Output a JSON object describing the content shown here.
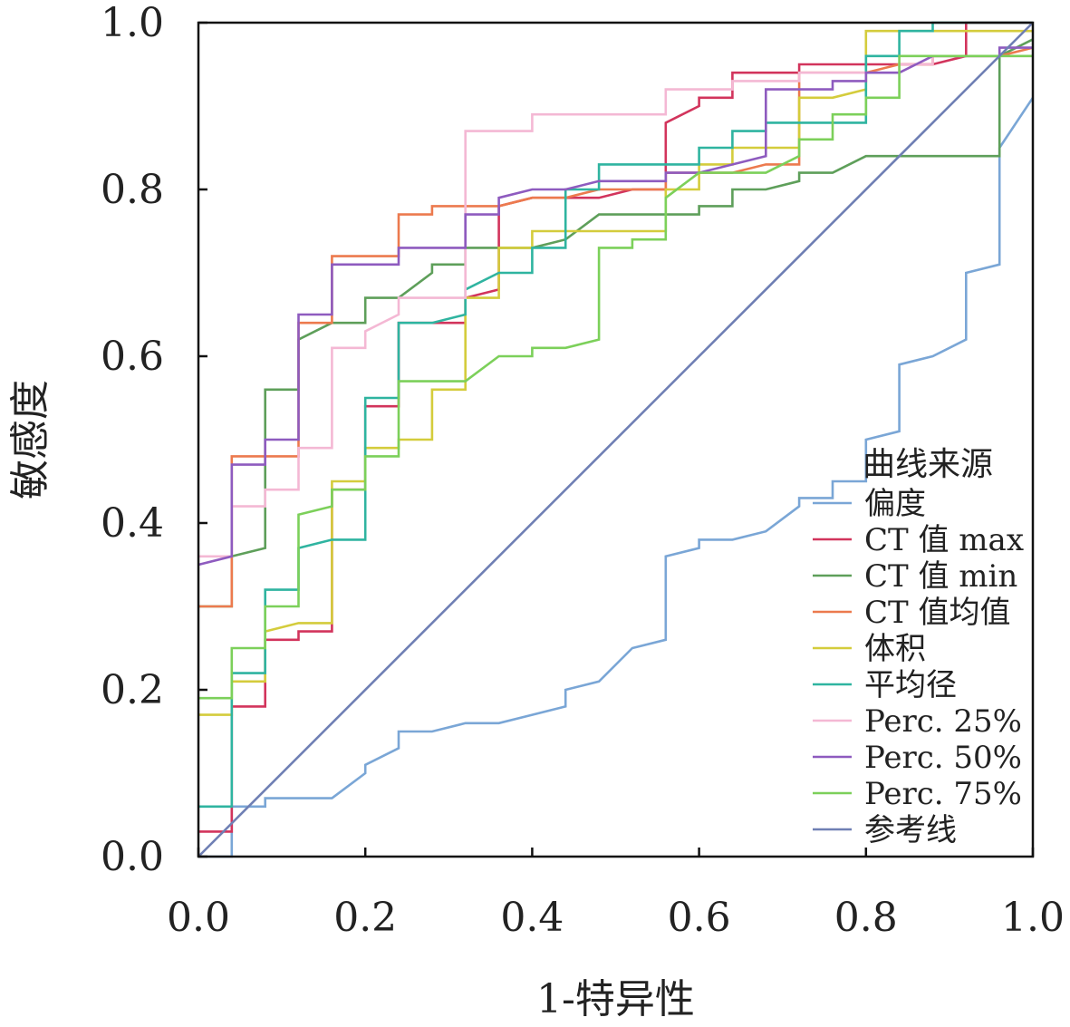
{
  "chart_data": {
    "type": "line",
    "title": "",
    "xlabel": "1-特异性",
    "ylabel": "敏感度",
    "xlim": [
      0,
      1
    ],
    "ylim": [
      0,
      1
    ],
    "xticks": [
      "0.0",
      "0.2",
      "0.4",
      "0.6",
      "0.8",
      "1.0"
    ],
    "yticks": [
      "0.0",
      "0.2",
      "0.4",
      "0.6",
      "0.8",
      "1.0"
    ],
    "grid": false,
    "legend": {
      "title": "曲线来源",
      "position": "bottom-right"
    },
    "series": [
      {
        "name": "偏度",
        "color": "#7aa6d6",
        "points": [
          [
            0,
            0
          ],
          [
            0.04,
            0
          ],
          [
            0.04,
            0.06
          ],
          [
            0.08,
            0.06
          ],
          [
            0.08,
            0.07
          ],
          [
            0.16,
            0.07
          ],
          [
            0.2,
            0.1
          ],
          [
            0.2,
            0.11
          ],
          [
            0.24,
            0.13
          ],
          [
            0.24,
            0.15
          ],
          [
            0.28,
            0.15
          ],
          [
            0.32,
            0.16
          ],
          [
            0.36,
            0.16
          ],
          [
            0.4,
            0.17
          ],
          [
            0.44,
            0.18
          ],
          [
            0.44,
            0.2
          ],
          [
            0.48,
            0.21
          ],
          [
            0.52,
            0.25
          ],
          [
            0.56,
            0.26
          ],
          [
            0.56,
            0.36
          ],
          [
            0.6,
            0.37
          ],
          [
            0.6,
            0.38
          ],
          [
            0.64,
            0.38
          ],
          [
            0.68,
            0.39
          ],
          [
            0.72,
            0.42
          ],
          [
            0.72,
            0.43
          ],
          [
            0.76,
            0.43
          ],
          [
            0.76,
            0.45
          ],
          [
            0.8,
            0.45
          ],
          [
            0.8,
            0.5
          ],
          [
            0.84,
            0.51
          ],
          [
            0.84,
            0.59
          ],
          [
            0.88,
            0.6
          ],
          [
            0.92,
            0.62
          ],
          [
            0.92,
            0.7
          ],
          [
            0.96,
            0.71
          ],
          [
            0.96,
            0.85
          ],
          [
            1,
            0.91
          ]
        ]
      },
      {
        "name": "CT 值 max",
        "color": "#d2345c",
        "points": [
          [
            0,
            0.03
          ],
          [
            0.04,
            0.03
          ],
          [
            0.04,
            0.18
          ],
          [
            0.08,
            0.18
          ],
          [
            0.08,
            0.26
          ],
          [
            0.12,
            0.26
          ],
          [
            0.12,
            0.27
          ],
          [
            0.16,
            0.27
          ],
          [
            0.16,
            0.44
          ],
          [
            0.2,
            0.44
          ],
          [
            0.2,
            0.54
          ],
          [
            0.24,
            0.54
          ],
          [
            0.24,
            0.64
          ],
          [
            0.32,
            0.64
          ],
          [
            0.32,
            0.67
          ],
          [
            0.36,
            0.68
          ],
          [
            0.36,
            0.78
          ],
          [
            0.4,
            0.79
          ],
          [
            0.48,
            0.79
          ],
          [
            0.52,
            0.8
          ],
          [
            0.56,
            0.8
          ],
          [
            0.56,
            0.88
          ],
          [
            0.6,
            0.9
          ],
          [
            0.6,
            0.91
          ],
          [
            0.64,
            0.91
          ],
          [
            0.64,
            0.94
          ],
          [
            0.72,
            0.94
          ],
          [
            0.72,
            0.95
          ],
          [
            0.88,
            0.95
          ],
          [
            0.92,
            0.96
          ],
          [
            0.92,
            1
          ],
          [
            1,
            1
          ]
        ]
      },
      {
        "name": "CT 值 min",
        "color": "#5e9f5a",
        "points": [
          [
            0,
            0.3
          ],
          [
            0.04,
            0.3
          ],
          [
            0.04,
            0.36
          ],
          [
            0.08,
            0.37
          ],
          [
            0.08,
            0.56
          ],
          [
            0.12,
            0.56
          ],
          [
            0.12,
            0.62
          ],
          [
            0.16,
            0.64
          ],
          [
            0.2,
            0.64
          ],
          [
            0.2,
            0.67
          ],
          [
            0.24,
            0.67
          ],
          [
            0.28,
            0.7
          ],
          [
            0.28,
            0.71
          ],
          [
            0.32,
            0.71
          ],
          [
            0.32,
            0.73
          ],
          [
            0.4,
            0.73
          ],
          [
            0.44,
            0.74
          ],
          [
            0.48,
            0.77
          ],
          [
            0.56,
            0.77
          ],
          [
            0.6,
            0.77
          ],
          [
            0.6,
            0.78
          ],
          [
            0.64,
            0.78
          ],
          [
            0.64,
            0.8
          ],
          [
            0.68,
            0.8
          ],
          [
            0.72,
            0.81
          ],
          [
            0.72,
            0.82
          ],
          [
            0.76,
            0.82
          ],
          [
            0.8,
            0.84
          ],
          [
            0.96,
            0.84
          ],
          [
            0.96,
            0.96
          ],
          [
            1,
            0.98
          ]
        ]
      },
      {
        "name": "CT 值均值",
        "color": "#ec7a4e",
        "points": [
          [
            0,
            0.3
          ],
          [
            0.04,
            0.3
          ],
          [
            0.04,
            0.48
          ],
          [
            0.12,
            0.48
          ],
          [
            0.12,
            0.64
          ],
          [
            0.16,
            0.64
          ],
          [
            0.16,
            0.72
          ],
          [
            0.24,
            0.72
          ],
          [
            0.24,
            0.77
          ],
          [
            0.28,
            0.77
          ],
          [
            0.28,
            0.78
          ],
          [
            0.36,
            0.78
          ],
          [
            0.4,
            0.79
          ],
          [
            0.44,
            0.79
          ],
          [
            0.48,
            0.8
          ],
          [
            0.52,
            0.8
          ],
          [
            0.56,
            0.8
          ],
          [
            0.56,
            0.82
          ],
          [
            0.64,
            0.82
          ],
          [
            0.68,
            0.83
          ],
          [
            0.72,
            0.83
          ],
          [
            0.72,
            0.94
          ],
          [
            0.8,
            0.94
          ],
          [
            0.84,
            0.95
          ],
          [
            0.88,
            0.95
          ],
          [
            0.88,
            0.96
          ],
          [
            0.96,
            0.96
          ],
          [
            1,
            0.97
          ]
        ]
      },
      {
        "name": "体积",
        "color": "#d4cc3c",
        "points": [
          [
            0,
            0.17
          ],
          [
            0.04,
            0.17
          ],
          [
            0.04,
            0.21
          ],
          [
            0.08,
            0.21
          ],
          [
            0.08,
            0.27
          ],
          [
            0.12,
            0.28
          ],
          [
            0.16,
            0.28
          ],
          [
            0.16,
            0.45
          ],
          [
            0.2,
            0.45
          ],
          [
            0.2,
            0.49
          ],
          [
            0.24,
            0.49
          ],
          [
            0.24,
            0.5
          ],
          [
            0.28,
            0.5
          ],
          [
            0.28,
            0.56
          ],
          [
            0.32,
            0.56
          ],
          [
            0.32,
            0.67
          ],
          [
            0.36,
            0.67
          ],
          [
            0.36,
            0.73
          ],
          [
            0.4,
            0.73
          ],
          [
            0.4,
            0.75
          ],
          [
            0.44,
            0.75
          ],
          [
            0.52,
            0.75
          ],
          [
            0.56,
            0.75
          ],
          [
            0.56,
            0.8
          ],
          [
            0.6,
            0.8
          ],
          [
            0.6,
            0.83
          ],
          [
            0.64,
            0.83
          ],
          [
            0.64,
            0.85
          ],
          [
            0.72,
            0.85
          ],
          [
            0.72,
            0.91
          ],
          [
            0.76,
            0.91
          ],
          [
            0.8,
            0.92
          ],
          [
            0.8,
            0.99
          ],
          [
            0.92,
            0.99
          ],
          [
            0.92,
            0.99
          ],
          [
            1,
            0.99
          ]
        ]
      },
      {
        "name": "平均径",
        "color": "#2fb4a0",
        "points": [
          [
            0,
            0.06
          ],
          [
            0.04,
            0.06
          ],
          [
            0.04,
            0.22
          ],
          [
            0.08,
            0.22
          ],
          [
            0.08,
            0.32
          ],
          [
            0.12,
            0.32
          ],
          [
            0.12,
            0.37
          ],
          [
            0.16,
            0.38
          ],
          [
            0.2,
            0.38
          ],
          [
            0.2,
            0.55
          ],
          [
            0.24,
            0.55
          ],
          [
            0.24,
            0.64
          ],
          [
            0.28,
            0.64
          ],
          [
            0.32,
            0.65
          ],
          [
            0.32,
            0.68
          ],
          [
            0.36,
            0.7
          ],
          [
            0.4,
            0.7
          ],
          [
            0.4,
            0.73
          ],
          [
            0.44,
            0.73
          ],
          [
            0.44,
            0.8
          ],
          [
            0.48,
            0.8
          ],
          [
            0.48,
            0.83
          ],
          [
            0.56,
            0.83
          ],
          [
            0.6,
            0.83
          ],
          [
            0.6,
            0.85
          ],
          [
            0.64,
            0.85
          ],
          [
            0.64,
            0.87
          ],
          [
            0.68,
            0.87
          ],
          [
            0.68,
            0.88
          ],
          [
            0.76,
            0.88
          ],
          [
            0.8,
            0.88
          ],
          [
            0.8,
            0.96
          ],
          [
            0.84,
            0.96
          ],
          [
            0.84,
            0.99
          ],
          [
            0.88,
            0.99
          ],
          [
            0.88,
            1
          ],
          [
            1,
            1
          ]
        ]
      },
      {
        "name": "Perc. 25%",
        "color": "#f4b8d4",
        "points": [
          [
            0,
            0.36
          ],
          [
            0.04,
            0.36
          ],
          [
            0.04,
            0.42
          ],
          [
            0.08,
            0.42
          ],
          [
            0.08,
            0.44
          ],
          [
            0.12,
            0.44
          ],
          [
            0.12,
            0.49
          ],
          [
            0.16,
            0.49
          ],
          [
            0.16,
            0.61
          ],
          [
            0.2,
            0.61
          ],
          [
            0.2,
            0.63
          ],
          [
            0.24,
            0.65
          ],
          [
            0.24,
            0.67
          ],
          [
            0.32,
            0.67
          ],
          [
            0.32,
            0.87
          ],
          [
            0.4,
            0.87
          ],
          [
            0.4,
            0.89
          ],
          [
            0.56,
            0.89
          ],
          [
            0.56,
            0.92
          ],
          [
            0.64,
            0.92
          ],
          [
            0.64,
            0.93
          ],
          [
            0.72,
            0.93
          ],
          [
            0.72,
            0.94
          ],
          [
            0.84,
            0.94
          ],
          [
            0.84,
            0.95
          ],
          [
            0.88,
            0.95
          ],
          [
            0.88,
            0.96
          ],
          [
            1,
            0.96
          ]
        ]
      },
      {
        "name": "Perc. 50%",
        "color": "#8e5bbf",
        "points": [
          [
            0,
            0.35
          ],
          [
            0.04,
            0.36
          ],
          [
            0.04,
            0.47
          ],
          [
            0.08,
            0.47
          ],
          [
            0.08,
            0.5
          ],
          [
            0.12,
            0.5
          ],
          [
            0.12,
            0.65
          ],
          [
            0.16,
            0.65
          ],
          [
            0.16,
            0.71
          ],
          [
            0.24,
            0.71
          ],
          [
            0.24,
            0.73
          ],
          [
            0.32,
            0.73
          ],
          [
            0.32,
            0.77
          ],
          [
            0.36,
            0.77
          ],
          [
            0.36,
            0.79
          ],
          [
            0.4,
            0.8
          ],
          [
            0.44,
            0.8
          ],
          [
            0.48,
            0.81
          ],
          [
            0.56,
            0.81
          ],
          [
            0.56,
            0.82
          ],
          [
            0.6,
            0.82
          ],
          [
            0.68,
            0.84
          ],
          [
            0.68,
            0.92
          ],
          [
            0.76,
            0.92
          ],
          [
            0.76,
            0.93
          ],
          [
            0.8,
            0.93
          ],
          [
            0.8,
            0.94
          ],
          [
            0.84,
            0.94
          ],
          [
            0.88,
            0.96
          ],
          [
            0.96,
            0.96
          ],
          [
            0.96,
            0.97
          ],
          [
            1,
            0.97
          ]
        ]
      },
      {
        "name": "Perc. 75%",
        "color": "#7cd05a",
        "points": [
          [
            0,
            0.19
          ],
          [
            0.04,
            0.19
          ],
          [
            0.04,
            0.25
          ],
          [
            0.08,
            0.25
          ],
          [
            0.08,
            0.3
          ],
          [
            0.12,
            0.3
          ],
          [
            0.12,
            0.41
          ],
          [
            0.16,
            0.42
          ],
          [
            0.16,
            0.44
          ],
          [
            0.2,
            0.44
          ],
          [
            0.2,
            0.48
          ],
          [
            0.24,
            0.48
          ],
          [
            0.24,
            0.57
          ],
          [
            0.32,
            0.57
          ],
          [
            0.36,
            0.6
          ],
          [
            0.4,
            0.6
          ],
          [
            0.4,
            0.61
          ],
          [
            0.44,
            0.61
          ],
          [
            0.48,
            0.62
          ],
          [
            0.48,
            0.73
          ],
          [
            0.52,
            0.73
          ],
          [
            0.52,
            0.74
          ],
          [
            0.56,
            0.74
          ],
          [
            0.56,
            0.79
          ],
          [
            0.6,
            0.82
          ],
          [
            0.64,
            0.82
          ],
          [
            0.68,
            0.82
          ],
          [
            0.72,
            0.84
          ],
          [
            0.72,
            0.86
          ],
          [
            0.76,
            0.86
          ],
          [
            0.76,
            0.89
          ],
          [
            0.8,
            0.89
          ],
          [
            0.8,
            0.91
          ],
          [
            0.84,
            0.91
          ],
          [
            0.84,
            0.96
          ],
          [
            1,
            0.96
          ]
        ]
      },
      {
        "name": "参考线",
        "color": "#6f7fb4",
        "points": [
          [
            0,
            0
          ],
          [
            1,
            1
          ]
        ]
      }
    ]
  }
}
